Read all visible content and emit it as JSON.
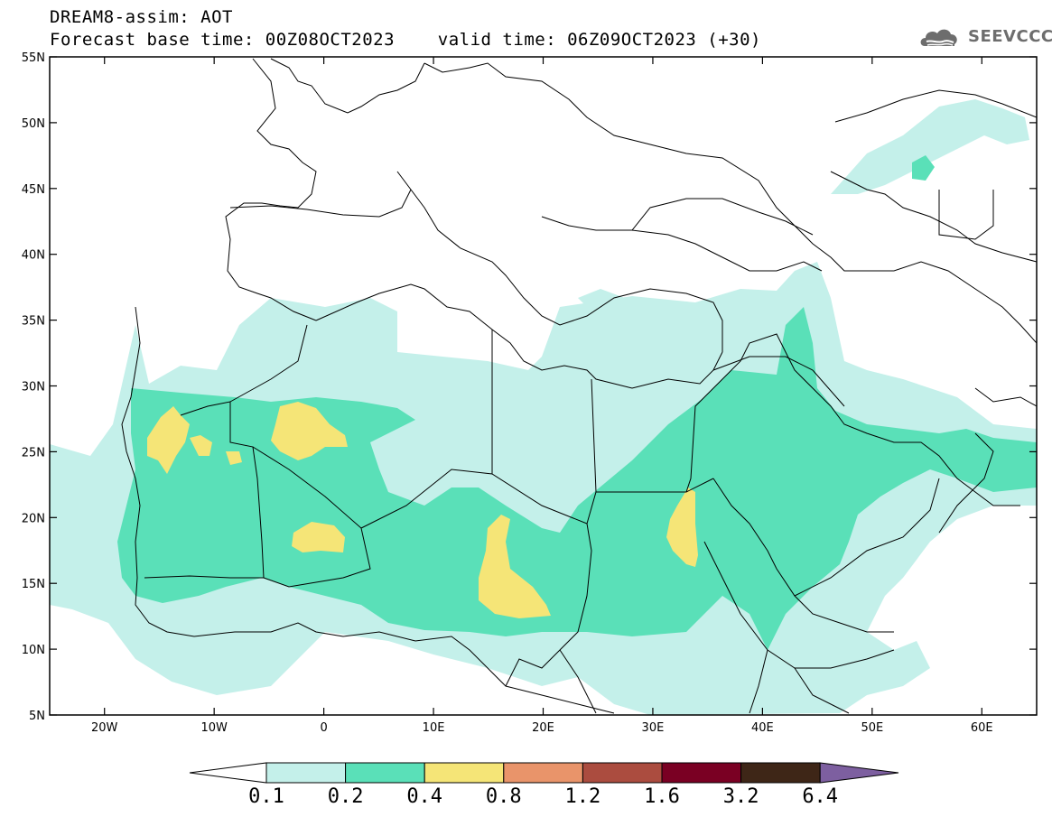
{
  "header": {
    "title_line1": "DREAM8-assim: AOT",
    "title_line2": "Forecast base time: 00Z08OCT2023    valid time: 06Z09OCT2023 (+30)",
    "logo_text": "SEEVCCC"
  },
  "map": {
    "projection": "cylindrical equidistant",
    "lon_range": [
      -25,
      65
    ],
    "lat_range": [
      5,
      55
    ],
    "lat_ticks": [
      "5N",
      "10N",
      "15N",
      "20N",
      "25N",
      "30N",
      "35N",
      "40N",
      "45N",
      "50N",
      "55N"
    ],
    "lon_ticks": [
      "20W",
      "10W",
      "0",
      "10E",
      "20E",
      "30E",
      "40E",
      "50E",
      "60E"
    ],
    "boundaries": "country borders and coastlines in black"
  },
  "legend": {
    "labels": [
      "0.1",
      "0.2",
      "0.4",
      "0.8",
      "1.2",
      "1.6",
      "3.2",
      "6.4"
    ],
    "colors": [
      "#ffffff",
      "#c4f0ea",
      "#5ae0b8",
      "#f5e577",
      "#e9946a",
      "#ab4c3f",
      "#7a0023",
      "#3e2617",
      "#7d5fa0"
    ]
  }
}
